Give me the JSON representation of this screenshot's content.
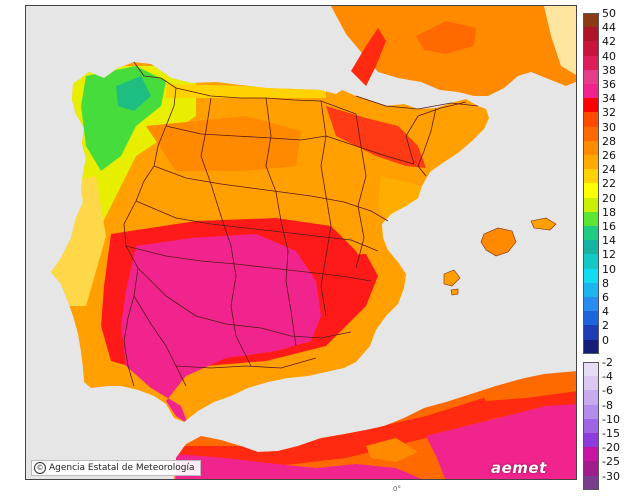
{
  "credit": "Agencia Estatal de Meteorología",
  "logo": "aemet",
  "bottom_tick": "0°",
  "colors": {
    "background": "#e6e6e6",
    "border_lines": "#5a1a1a",
    "extreme": "#f0248c",
    "very_hot": "#ff1a1a",
    "hot": "#ff6a00",
    "warm": "#ffa500",
    "mild": "#ffd200",
    "cool": "#e8f500",
    "green": "#33e85a"
  },
  "legend_warm": [
    {
      "label": "50",
      "color": "#8c3a14"
    },
    {
      "label": "44",
      "color": "#b01428"
    },
    {
      "label": "42",
      "color": "#c8143c"
    },
    {
      "label": "40",
      "color": "#dc1e5a"
    },
    {
      "label": "38",
      "color": "#e63c8c"
    },
    {
      "label": "36",
      "color": "#f0248c"
    },
    {
      "label": "34",
      "color": "#ff0000"
    },
    {
      "label": "32",
      "color": "#ff4a00"
    },
    {
      "label": "30",
      "color": "#ff6a00"
    },
    {
      "label": "28",
      "color": "#ff8c00"
    },
    {
      "label": "26",
      "color": "#ffaa00"
    },
    {
      "label": "24",
      "color": "#ffd200"
    },
    {
      "label": "22",
      "color": "#ffff00"
    },
    {
      "label": "20",
      "color": "#c8f000"
    },
    {
      "label": "18",
      "color": "#5ae632"
    },
    {
      "label": "16",
      "color": "#1ecc82"
    },
    {
      "label": "14",
      "color": "#14b4a0"
    },
    {
      "label": "12",
      "color": "#14c8c8"
    },
    {
      "label": "10",
      "color": "#14dcf0"
    },
    {
      "label": "8",
      "color": "#1eb4f0"
    },
    {
      "label": "6",
      "color": "#288cf0"
    },
    {
      "label": "4",
      "color": "#1e64dc"
    },
    {
      "label": "2",
      "color": "#1e3cb4"
    },
    {
      "label": "0",
      "color": "#141e78"
    }
  ],
  "legend_cold": [
    {
      "label": "-2",
      "color": "#e6dcf5"
    },
    {
      "label": "-4",
      "color": "#dcc8f0"
    },
    {
      "label": "-6",
      "color": "#c8aaf0"
    },
    {
      "label": "-8",
      "color": "#b48ceb"
    },
    {
      "label": "-10",
      "color": "#a064e6"
    },
    {
      "label": "-15",
      "color": "#8c3cdc"
    },
    {
      "label": "-20",
      "color": "#c814a0"
    },
    {
      "label": "-25",
      "color": "#a01e8c"
    },
    {
      "label": "-30",
      "color": "#7a3c8c"
    }
  ]
}
